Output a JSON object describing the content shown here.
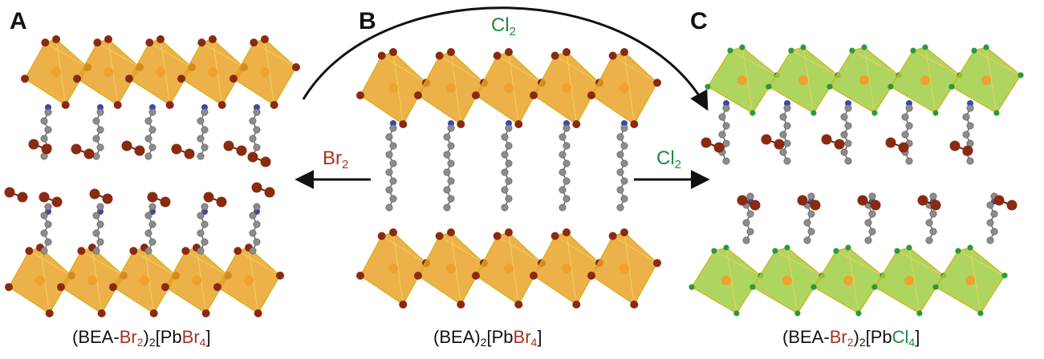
{
  "panels": [
    {
      "letter": "A",
      "caption": {
        "p1": "(BEA-",
        "p2": "Br",
        "p3": "2",
        "p4": ")",
        "p5": "2",
        "p6": "[Pb",
        "p7": "Br",
        "p8": "4",
        "p9": "]"
      }
    },
    {
      "letter": "B",
      "caption": {
        "p1": "(BEA)",
        "p2": "2",
        "p3": "[Pb",
        "p4": "Br",
        "p5": "4",
        "p6": "]"
      }
    },
    {
      "letter": "C",
      "caption": {
        "p1": "(BEA-",
        "p2": "Br",
        "p3": "2",
        "p4": ")",
        "p5": "2",
        "p6": "[Pb",
        "p7": "Cl",
        "p8": "4",
        "p9": "]"
      }
    }
  ],
  "arrows": {
    "to_A": {
      "label": "Br",
      "sub": "2"
    },
    "to_C": {
      "label": "Cl",
      "sub": "2"
    },
    "arc_A_to_C": {
      "label": "Cl",
      "sub": "2"
    }
  },
  "colors": {
    "octahedron_orange": "#e8a020",
    "octahedron_green": "#9ccc3c",
    "bromine": "#8a2a10",
    "chlorine": "#2a9a3c",
    "carbon": "#8c8c8c",
    "nitrogen": "#3a4aa8",
    "lead": "#f0a030"
  }
}
